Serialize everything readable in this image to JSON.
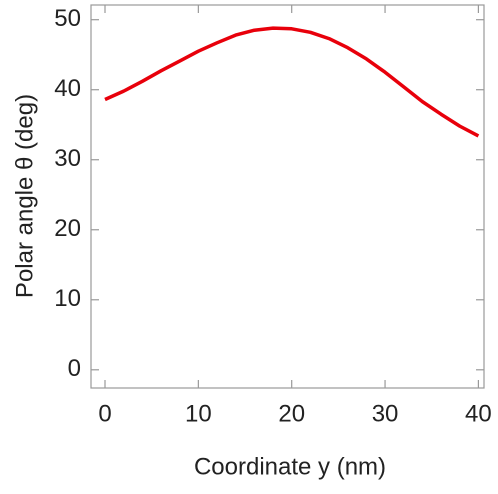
{
  "chart_data": {
    "type": "line",
    "xlabel": "Coordinate y (nm)",
    "ylabel": "Polar angle θ (deg)",
    "x": [
      0,
      2,
      4,
      6,
      8,
      10,
      12,
      14,
      16,
      18,
      20,
      22,
      24,
      26,
      28,
      30,
      32,
      34,
      36,
      38,
      40
    ],
    "series": [
      {
        "color": "#e8000b",
        "values": [
          38.6,
          39.8,
          41.2,
          42.7,
          44.1,
          45.5,
          46.7,
          47.8,
          48.5,
          48.8,
          48.7,
          48.2,
          47.3,
          46.0,
          44.4,
          42.5,
          40.4,
          38.3,
          36.5,
          34.8,
          33.4
        ]
      }
    ],
    "xlim": [
      -1.5,
      40.6
    ],
    "ylim": [
      -2.6,
      52.1
    ],
    "xticks": [
      0,
      10,
      20,
      30,
      40
    ],
    "yticks": [
      0,
      10,
      20,
      30,
      40,
      50
    ]
  }
}
